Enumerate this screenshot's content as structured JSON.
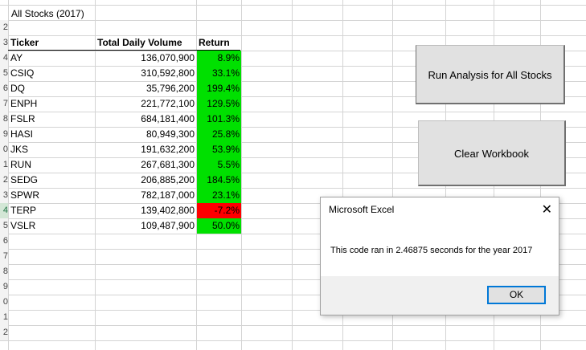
{
  "sheet": {
    "title_cell": "All Stocks (2017)",
    "headers": {
      "ticker": "Ticker",
      "volume": "Total Daily Volume",
      "return": "Return"
    },
    "row_numbers": [
      "2",
      "3",
      "4",
      "5",
      "6",
      "7",
      "8",
      "9",
      "0",
      "1",
      "2",
      "3",
      "4",
      "5",
      "6",
      "7",
      "8",
      "9",
      "0",
      "1",
      "2"
    ],
    "rows": [
      {
        "ticker": "AY",
        "volume": "136,070,900",
        "return": "8.9%",
        "positive": true
      },
      {
        "ticker": "CSIQ",
        "volume": "310,592,800",
        "return": "33.1%",
        "positive": true
      },
      {
        "ticker": "DQ",
        "volume": "35,796,200",
        "return": "199.4%",
        "positive": true
      },
      {
        "ticker": "ENPH",
        "volume": "221,772,100",
        "return": "129.5%",
        "positive": true
      },
      {
        "ticker": "FSLR",
        "volume": "684,181,400",
        "return": "101.3%",
        "positive": true
      },
      {
        "ticker": "HASI",
        "volume": "80,949,300",
        "return": "25.8%",
        "positive": true
      },
      {
        "ticker": "JKS",
        "volume": "191,632,200",
        "return": "53.9%",
        "positive": true
      },
      {
        "ticker": "RUN",
        "volume": "267,681,300",
        "return": "5.5%",
        "positive": true
      },
      {
        "ticker": "SEDG",
        "volume": "206,885,200",
        "return": "184.5%",
        "positive": true
      },
      {
        "ticker": "SPWR",
        "volume": "782,187,000",
        "return": "23.1%",
        "positive": true
      },
      {
        "ticker": "TERP",
        "volume": "139,402,800",
        "return": "-7.2%",
        "positive": false
      },
      {
        "ticker": "VSLR",
        "volume": "109,487,900",
        "return": "50.0%",
        "positive": true
      }
    ],
    "colors": {
      "positive": "#00e000",
      "negative": "#ff0000"
    }
  },
  "buttons": {
    "run": "Run Analysis for All Stocks",
    "clear": "Clear Workbook"
  },
  "dialog": {
    "title": "Microsoft Excel",
    "close": "✕",
    "message": "This code ran in 2.46875 seconds for the year 2017",
    "ok": "OK"
  }
}
